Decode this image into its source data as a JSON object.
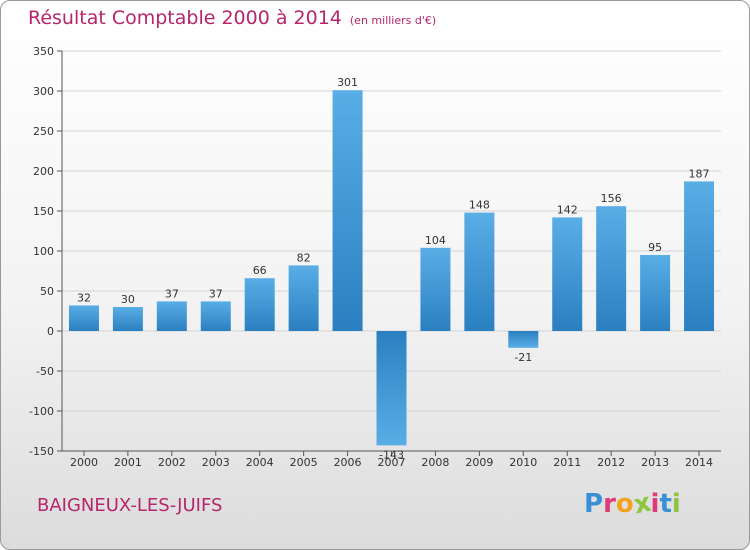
{
  "header": {
    "title": "Résultat Comptable 2000 à 2014",
    "unit": "(en milliers d'€)"
  },
  "footer": {
    "place": "BAIGNEUX-LES-JUIFS",
    "logo_letters": [
      "P",
      "r",
      "o",
      "x",
      "i",
      "t",
      "i"
    ]
  },
  "colors": {
    "title": "#b5266b",
    "bar_top": "#5aaee6",
    "bar_bottom": "#2a7fc0",
    "logo": [
      "#3a8fd6",
      "#e03a7a",
      "#f2a21c",
      "#8cc63f",
      "#e03a7a",
      "#3a8fd6",
      "#8cc63f"
    ]
  },
  "chart_data": {
    "type": "bar",
    "title": "Résultat Comptable 2000 à 2014",
    "subtitle": "(en milliers d'€)",
    "xlabel": "",
    "ylabel": "",
    "grid": true,
    "ylim": [
      -150,
      350
    ],
    "yticks": [
      -150,
      -100,
      -50,
      0,
      50,
      100,
      150,
      200,
      250,
      300,
      350
    ],
    "categories": [
      "2000",
      "2001",
      "2002",
      "2003",
      "2004",
      "2005",
      "2006",
      "2007",
      "2008",
      "2009",
      "2010",
      "2011",
      "2012",
      "2013",
      "2014"
    ],
    "values": [
      32,
      30,
      37,
      37,
      66,
      82,
      301,
      -143,
      104,
      148,
      -21,
      142,
      156,
      95,
      187
    ]
  }
}
